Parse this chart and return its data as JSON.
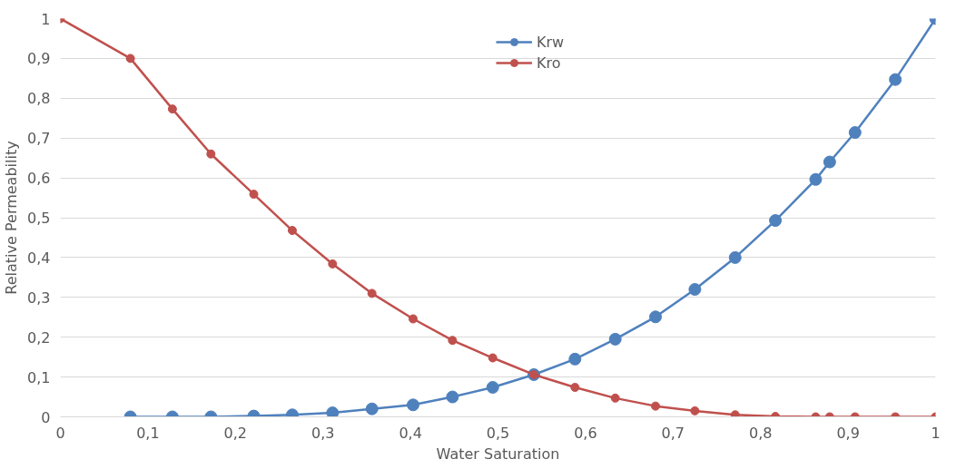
{
  "chart_data": {
    "type": "line",
    "xlabel": "Water Saturation",
    "ylabel": "Relative Permeability",
    "xlim": [
      0,
      1
    ],
    "ylim": [
      0,
      1
    ],
    "xticks": [
      0,
      {
        "value": 0.1,
        "label": "0,1"
      },
      {
        "value": 0.2,
        "label": "0,2"
      },
      {
        "value": 0.3,
        "label": "0,3"
      },
      {
        "value": 0.4,
        "label": "0,4"
      },
      {
        "value": 0.5,
        "label": "0,5"
      },
      {
        "value": 0.6,
        "label": "0,6"
      },
      {
        "value": 0.7,
        "label": "0,7"
      },
      {
        "value": 0.8,
        "label": "0,8"
      },
      {
        "value": 0.9,
        "label": "0,9"
      },
      1
    ],
    "yticks": [
      0,
      {
        "value": 0.1,
        "label": "0,1"
      },
      {
        "value": 0.2,
        "label": "0,2"
      },
      {
        "value": 0.3,
        "label": "0,3"
      },
      {
        "value": 0.4,
        "label": "0,4"
      },
      {
        "value": 0.5,
        "label": "0,5"
      },
      {
        "value": 0.6,
        "label": "0,6"
      },
      {
        "value": 0.7,
        "label": "0,7"
      },
      {
        "value": 0.8,
        "label": "0,8"
      },
      {
        "value": 0.9,
        "label": "0,9"
      },
      1
    ],
    "grid": "y",
    "legend": "top",
    "marker": "circle",
    "series": [
      {
        "name": "Krw",
        "color": "#4f81bd",
        "x": [
          0.08,
          0.128,
          0.172,
          0.221,
          0.265,
          0.311,
          0.356,
          0.403,
          0.448,
          0.494,
          0.541,
          0.588,
          0.634,
          0.68,
          0.725,
          0.771,
          0.817,
          0.863,
          0.879,
          0.908,
          0.954,
          1
        ],
        "values": [
          0,
          0,
          0,
          0.002,
          0.005,
          0.01,
          0.02,
          0.03,
          0.05,
          0.074,
          0.106,
          0.145,
          0.195,
          0.251,
          0.32,
          0.4,
          0.493,
          0.596,
          0.64,
          0.714,
          0.847,
          1
        ]
      },
      {
        "name": "Kro",
        "color": "#c0504d",
        "x": [
          0,
          0.08,
          0.128,
          0.172,
          0.221,
          0.265,
          0.311,
          0.356,
          0.403,
          0.448,
          0.494,
          0.541,
          0.588,
          0.634,
          0.68,
          0.725,
          0.771,
          0.817,
          0.863,
          0.879,
          0.908,
          0.954,
          1
        ],
        "values": [
          1,
          0.9,
          0.773,
          0.66,
          0.559,
          0.468,
          0.384,
          0.31,
          0.246,
          0.192,
          0.148,
          0.106,
          0.074,
          0.047,
          0.027,
          0.015,
          0.005,
          0.001,
          0,
          0,
          0,
          0,
          0
        ]
      }
    ]
  }
}
